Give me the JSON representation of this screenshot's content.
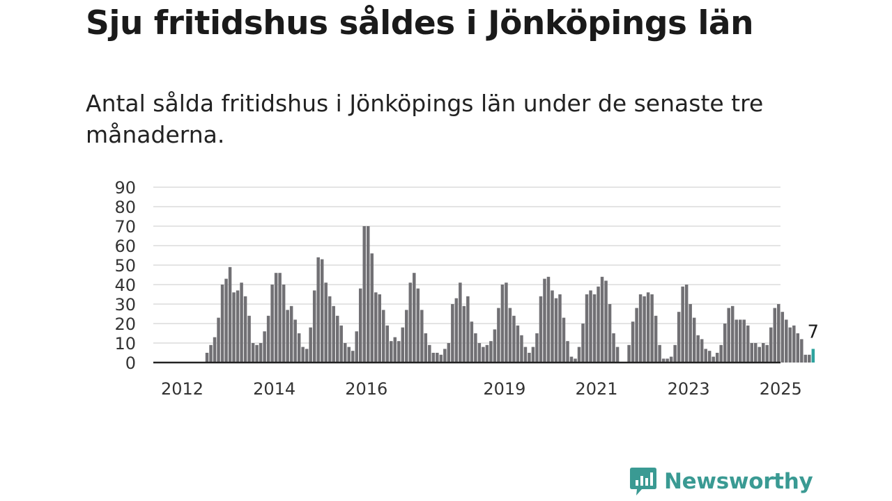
{
  "title": "Sju fritidshus såldes i Jönköpings län",
  "subtitle": "Antal sålda fritidshus i Jönköpings län under de senaste tre månaderna.",
  "brand": "Newsworthy",
  "colors": {
    "bar": "#717074",
    "highlight": "#2ea39e",
    "grid": "#dcdcdc",
    "axis": "#222222",
    "brand": "#3a9a93"
  },
  "chart_data": {
    "type": "bar",
    "x_axis": "monthly, January 2012 – April 2025",
    "yticks": [
      0,
      10,
      20,
      30,
      40,
      50,
      60,
      70,
      80,
      90
    ],
    "ylim": [
      0,
      90
    ],
    "xtick_labels": [
      "2012",
      "2014",
      "2016",
      "2019",
      "2021",
      "2023",
      "2025"
    ],
    "grid": "horizontal",
    "highlight_label": "7",
    "values": [
      0,
      0,
      0,
      0,
      0,
      0,
      0,
      5,
      9,
      13,
      23,
      40,
      43,
      49,
      36,
      37,
      41,
      34,
      24,
      10,
      9,
      10,
      16,
      24,
      40,
      46,
      46,
      40,
      27,
      29,
      22,
      15,
      8,
      7,
      18,
      37,
      54,
      53,
      41,
      34,
      29,
      24,
      19,
      10,
      8,
      6,
      16,
      38,
      70,
      70,
      56,
      36,
      35,
      27,
      19,
      11,
      13,
      11,
      18,
      27,
      41,
      46,
      38,
      27,
      15,
      9,
      5,
      5,
      4,
      7,
      10,
      30,
      33,
      41,
      29,
      34,
      21,
      15,
      10,
      8,
      9,
      11,
      17,
      28,
      40,
      41,
      28,
      24,
      19,
      14,
      8,
      5,
      8,
      15,
      34,
      43,
      44,
      37,
      33,
      35,
      23,
      11,
      3,
      2,
      8,
      20,
      35,
      37,
      35,
      39,
      44,
      42,
      30,
      15,
      8,
      0,
      0,
      9,
      21,
      28,
      35,
      34,
      36,
      35,
      24,
      9,
      2,
      2,
      3,
      9,
      26,
      39,
      40,
      30,
      23,
      14,
      12,
      7,
      6,
      3,
      5,
      9,
      20,
      28,
      29,
      22,
      22,
      22,
      19,
      10,
      10,
      8,
      10,
      9,
      18,
      28,
      30,
      26,
      22,
      18,
      19,
      15,
      12,
      4,
      4,
      7
    ]
  }
}
